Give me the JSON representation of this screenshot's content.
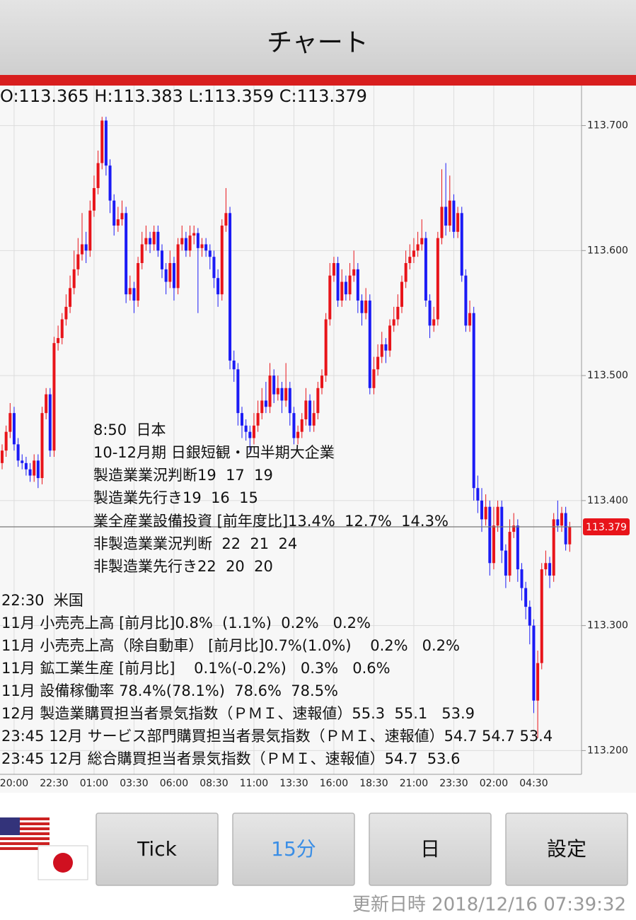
{
  "header": {
    "title": "チャート"
  },
  "chart_data": {
    "type": "candlestick",
    "ohlc_label": "O:113.365 H:113.383 L:113.359 C:113.379",
    "up_color": "#e8141a",
    "down_color": "#1b1bf5",
    "current_price": 113.379,
    "current_price_color": "#e8141a",
    "ylim": [
      113.181,
      113.732
    ],
    "yticks": [
      {
        "value": 113.7,
        "label": "113.700"
      },
      {
        "value": 113.6,
        "label": "113.600"
      },
      {
        "value": 113.5,
        "label": "113.500"
      },
      {
        "value": 113.4,
        "label": "113.400"
      },
      {
        "value": 113.3,
        "label": "113.300"
      },
      {
        "value": 113.2,
        "label": "113.200"
      }
    ],
    "grid": true,
    "categories": [
      null,
      null,
      null,
      "20:00",
      null,
      null,
      null,
      null,
      null,
      null,
      null,
      null,
      null,
      "22:30",
      null,
      null,
      null,
      null,
      null,
      null,
      null,
      null,
      null,
      "01:00",
      null,
      null,
      null,
      null,
      null,
      null,
      null,
      null,
      null,
      "03:30",
      null,
      null,
      null,
      null,
      null,
      null,
      null,
      null,
      null,
      "06:00",
      null,
      null,
      null,
      null,
      null,
      null,
      null,
      null,
      null,
      "08:30",
      null,
      null,
      null,
      null,
      null,
      null,
      null,
      null,
      null,
      "11:00",
      null,
      null,
      null,
      null,
      null,
      null,
      null,
      null,
      null,
      "13:30",
      null,
      null,
      null,
      null,
      null,
      null,
      null,
      null,
      null,
      "16:00",
      null,
      null,
      null,
      null,
      null,
      null,
      null,
      null,
      null,
      "18:30",
      null,
      null,
      null,
      null,
      null,
      null,
      null,
      null,
      null,
      "21:00",
      null,
      null,
      null,
      null,
      null,
      null,
      null,
      null,
      null,
      "23:30",
      null,
      null,
      null,
      null,
      null,
      null,
      null,
      null,
      null,
      "02:00",
      null,
      null,
      null,
      null,
      null,
      null,
      null,
      null,
      null,
      "04:30",
      null,
      null,
      null,
      null,
      null,
      null,
      null,
      null,
      null
    ],
    "open": [
      113.43,
      113.44,
      113.455,
      113.47,
      113.445,
      113.432,
      113.43,
      113.425,
      113.42,
      113.432,
      113.418,
      113.47,
      113.485,
      113.44,
      113.526,
      113.53,
      113.545,
      113.555,
      113.57,
      113.585,
      113.597,
      113.605,
      113.6,
      113.632,
      113.65,
      113.67,
      113.704,
      113.668,
      113.64,
      113.62,
      113.625,
      113.63,
      113.565,
      113.57,
      113.56,
      113.59,
      113.605,
      113.61,
      113.605,
      113.615,
      113.6,
      113.585,
      113.575,
      113.59,
      113.57,
      113.605,
      113.61,
      113.6,
      113.612,
      113.614,
      113.602,
      113.605,
      113.6,
      113.595,
      113.578,
      113.565,
      113.62,
      113.63,
      113.512,
      113.505,
      113.47,
      113.46,
      113.455,
      113.45,
      113.46,
      113.47,
      113.48,
      113.475,
      113.5,
      113.485,
      113.49,
      113.48,
      113.49,
      113.47,
      113.45,
      113.455,
      113.465,
      113.48,
      113.46,
      113.47,
      113.49,
      113.5,
      113.545,
      113.58,
      113.59,
      113.56,
      113.575,
      113.565,
      113.58,
      113.585,
      113.56,
      113.55,
      113.56,
      113.49,
      113.505,
      113.515,
      113.525,
      113.52,
      113.54,
      113.545,
      113.555,
      113.575,
      113.59,
      113.595,
      113.6,
      113.605,
      113.61,
      113.56,
      113.54,
      113.545,
      113.61,
      113.635,
      113.62,
      113.64,
      113.615,
      113.63,
      113.58,
      113.54,
      113.55,
      113.41,
      113.4,
      113.385,
      113.395,
      113.35,
      113.38,
      113.395,
      113.36,
      113.34,
      113.375,
      113.38,
      113.345,
      113.33,
      113.315,
      113.3,
      113.24,
      113.27,
      113.345,
      113.35,
      113.34,
      113.385,
      113.38,
      113.39,
      113.365
    ],
    "high": [
      113.445,
      113.46,
      113.478,
      113.475,
      113.45,
      113.437,
      113.435,
      113.43,
      113.437,
      113.437,
      113.475,
      113.49,
      113.49,
      113.531,
      113.54,
      113.55,
      113.565,
      113.58,
      113.6,
      113.61,
      113.63,
      113.615,
      113.64,
      113.66,
      113.68,
      113.707,
      113.707,
      113.673,
      113.645,
      113.635,
      113.64,
      113.635,
      113.58,
      113.575,
      113.595,
      113.615,
      113.62,
      113.615,
      113.62,
      113.62,
      113.605,
      113.59,
      113.6,
      113.595,
      113.61,
      113.62,
      113.615,
      113.62,
      113.62,
      113.618,
      113.61,
      113.61,
      113.605,
      113.6,
      113.585,
      113.625,
      113.65,
      113.635,
      113.52,
      113.51,
      113.475,
      113.465,
      113.46,
      113.47,
      113.48,
      113.49,
      113.495,
      113.51,
      113.505,
      113.5,
      113.495,
      113.51,
      113.495,
      113.475,
      113.46,
      113.47,
      113.49,
      113.485,
      113.48,
      113.495,
      113.505,
      113.55,
      113.59,
      113.595,
      113.595,
      113.585,
      113.58,
      113.59,
      113.6,
      113.59,
      113.565,
      113.57,
      113.565,
      113.515,
      113.525,
      113.535,
      113.53,
      113.545,
      113.555,
      113.565,
      113.58,
      113.6,
      113.605,
      113.61,
      113.615,
      113.625,
      113.615,
      113.565,
      113.555,
      113.615,
      113.665,
      113.67,
      113.66,
      113.645,
      113.635,
      113.635,
      113.585,
      113.56,
      113.555,
      113.42,
      113.41,
      113.405,
      113.4,
      113.395,
      113.4,
      113.4,
      113.365,
      113.385,
      113.39,
      113.385,
      113.35,
      113.335,
      113.32,
      113.305,
      113.28,
      113.35,
      113.36,
      113.355,
      113.39,
      113.4,
      113.395,
      113.395,
      113.383
    ],
    "low": [
      113.425,
      113.435,
      113.45,
      113.44,
      113.427,
      113.425,
      113.42,
      113.415,
      113.415,
      113.41,
      113.413,
      113.465,
      113.435,
      113.435,
      113.52,
      113.525,
      113.54,
      113.55,
      113.565,
      113.58,
      113.592,
      113.59,
      113.595,
      113.627,
      113.645,
      113.665,
      113.66,
      113.63,
      113.612,
      113.615,
      113.62,
      113.558,
      113.56,
      113.55,
      113.555,
      113.585,
      113.6,
      113.598,
      113.6,
      113.595,
      113.578,
      113.565,
      113.57,
      113.56,
      113.565,
      113.6,
      113.595,
      113.595,
      113.605,
      113.55,
      113.595,
      113.595,
      113.585,
      113.57,
      113.555,
      113.56,
      113.615,
      113.505,
      113.495,
      113.46,
      113.45,
      113.448,
      113.44,
      113.445,
      113.455,
      113.465,
      113.47,
      113.47,
      113.478,
      113.48,
      113.47,
      113.475,
      113.46,
      113.445,
      113.445,
      113.45,
      113.46,
      113.455,
      113.455,
      113.465,
      113.485,
      113.495,
      113.54,
      113.575,
      113.555,
      113.555,
      113.56,
      113.56,
      113.575,
      113.55,
      113.54,
      113.545,
      113.485,
      113.485,
      113.5,
      113.51,
      113.51,
      113.515,
      113.535,
      113.54,
      113.55,
      113.57,
      113.585,
      113.59,
      113.595,
      113.6,
      113.555,
      113.53,
      113.535,
      113.54,
      113.605,
      113.612,
      113.615,
      113.61,
      113.61,
      113.575,
      113.535,
      113.535,
      113.4,
      113.39,
      113.375,
      113.38,
      113.34,
      113.345,
      113.375,
      113.35,
      113.33,
      113.335,
      113.37,
      113.335,
      113.32,
      113.305,
      113.285,
      113.23,
      113.21,
      113.265,
      113.34,
      113.33,
      113.335,
      113.375,
      113.375,
      113.36,
      113.359
    ],
    "close": [
      113.44,
      113.455,
      113.47,
      113.445,
      113.432,
      113.43,
      113.425,
      113.42,
      113.432,
      113.418,
      113.47,
      113.485,
      113.44,
      113.526,
      113.53,
      113.545,
      113.555,
      113.57,
      113.585,
      113.597,
      113.605,
      113.6,
      113.632,
      113.65,
      113.67,
      113.704,
      113.668,
      113.64,
      113.62,
      113.625,
      113.63,
      113.565,
      113.57,
      113.56,
      113.59,
      113.605,
      113.61,
      113.605,
      113.615,
      113.6,
      113.585,
      113.575,
      113.59,
      113.57,
      113.605,
      113.61,
      113.6,
      113.612,
      113.614,
      113.602,
      113.605,
      113.6,
      113.595,
      113.578,
      113.565,
      113.62,
      113.63,
      113.512,
      113.505,
      113.47,
      113.46,
      113.455,
      113.45,
      113.46,
      113.47,
      113.48,
      113.475,
      113.5,
      113.485,
      113.49,
      113.48,
      113.49,
      113.47,
      113.45,
      113.455,
      113.465,
      113.48,
      113.46,
      113.47,
      113.49,
      113.5,
      113.545,
      113.58,
      113.59,
      113.56,
      113.575,
      113.565,
      113.58,
      113.585,
      113.56,
      113.55,
      113.56,
      113.49,
      113.505,
      113.515,
      113.525,
      113.52,
      113.54,
      113.545,
      113.555,
      113.575,
      113.59,
      113.595,
      113.6,
      113.605,
      113.61,
      113.56,
      113.54,
      113.545,
      113.61,
      113.635,
      113.62,
      113.64,
      113.615,
      113.63,
      113.58,
      113.54,
      113.55,
      113.41,
      113.4,
      113.385,
      113.395,
      113.35,
      113.38,
      113.395,
      113.36,
      113.34,
      113.375,
      113.38,
      113.345,
      113.33,
      113.315,
      113.3,
      113.24,
      113.27,
      113.345,
      113.35,
      113.34,
      113.385,
      113.38,
      113.39,
      113.365,
      113.379
    ],
    "annotations": [
      "8:50  日本",
      "10-12月期 日銀短観・四半期大企業",
      "製造業業況判断19  17  19",
      "製造業先行き19  16  15",
      "業全産業設備投資 [前年度比]13.4%  12.7%  14.3%",
      "非製造業業況判断  22  21  24",
      "非製造業先行き22  20  20",
      "22:30  米国",
      "11月 小売売上高 [前月比]0.8%  (1.1%)  0.2%   0.2%",
      "11月 小売売上高（除自動車） [前月比]0.7%(1.0%)    0.2%   0.2%",
      "11月 鉱工業生産 [前月比]    0.1%(-0.2%)   0.3%   0.6%",
      "11月 設備稼働率 78.4%(78.1%)  78.6%  78.5%",
      "12月 製造業購買担当者景気指数（ＰＭＩ、速報値）55.3  55.1   53.9",
      "23:45 12月 サービス部門購買担当者景気指数（ＰＭＩ、速報値）54.7 54.7 53.4",
      "23:45 12月 総合購買担当者景気指数（ＰＭＩ、速報値）54.7  53.6"
    ]
  },
  "buttons": [
    "Tick",
    "15分",
    "日",
    "設定"
  ],
  "footer": {
    "updated": "更新日時 2018/12/16 07:39:32"
  }
}
